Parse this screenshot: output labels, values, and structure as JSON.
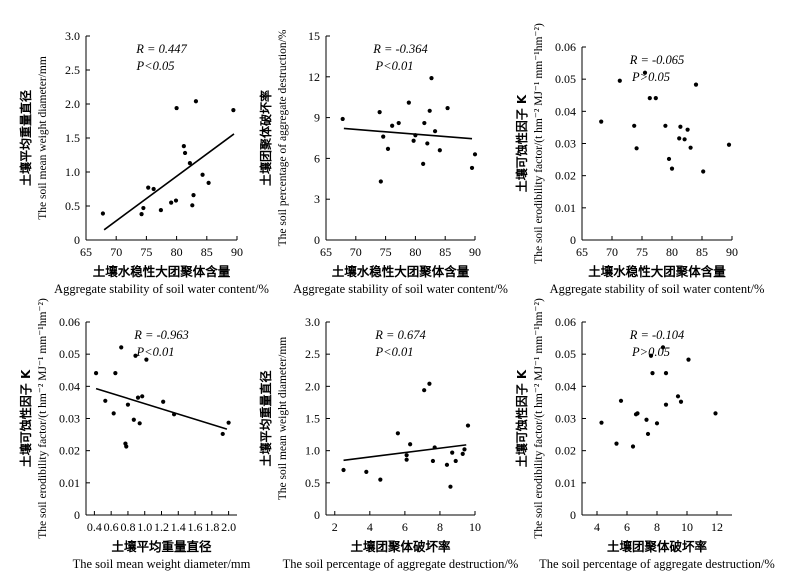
{
  "chart_data": [
    {
      "type": "scatter",
      "xlabel_cn": "土壤水稳性大团聚体含量",
      "xlabel_en": "Aggregate stability of soil water content/%",
      "ylabel_cn": "土壤平均重量直径",
      "ylabel_en": "The soil mean weight diameter/mm",
      "xlim": [
        65,
        90
      ],
      "ylim": [
        0,
        3.0
      ],
      "xticks": [
        "65",
        "70",
        "75",
        "80",
        "85",
        "90"
      ],
      "yticks": [
        "0",
        "0.5",
        "1.0",
        "1.5",
        "2.0",
        "2.5",
        "3.0"
      ],
      "r_text": "R = 0.447",
      "p_text": "P<0.05",
      "show_regression": true,
      "regression": {
        "x": [
          68,
          89.5
        ],
        "y": [
          0.15,
          1.56
        ]
      },
      "points": [
        {
          "x": 67.8,
          "y": 0.39
        },
        {
          "x": 74.2,
          "y": 0.38
        },
        {
          "x": 74.5,
          "y": 0.47
        },
        {
          "x": 75.3,
          "y": 0.77
        },
        {
          "x": 76.2,
          "y": 0.75
        },
        {
          "x": 77.4,
          "y": 0.44
        },
        {
          "x": 79.1,
          "y": 0.55
        },
        {
          "x": 79.9,
          "y": 0.58
        },
        {
          "x": 80.0,
          "y": 1.94
        },
        {
          "x": 81.2,
          "y": 1.38
        },
        {
          "x": 81.4,
          "y": 1.28
        },
        {
          "x": 82.2,
          "y": 1.13
        },
        {
          "x": 82.8,
          "y": 0.66
        },
        {
          "x": 82.6,
          "y": 0.51
        },
        {
          "x": 83.2,
          "y": 2.04
        },
        {
          "x": 84.3,
          "y": 0.96
        },
        {
          "x": 85.3,
          "y": 0.84
        },
        {
          "x": 89.4,
          "y": 1.91
        }
      ]
    },
    {
      "type": "scatter",
      "xlabel_cn": "土壤水稳性大团聚体含量",
      "xlabel_en": "Aggregate stability of soil water content/%",
      "ylabel_cn": "土壤团聚体破坏率",
      "ylabel_en": "The soil percentage of aggregate destruction/%",
      "xlim": [
        65,
        90
      ],
      "ylim": [
        0,
        15
      ],
      "xticks": [
        "65",
        "70",
        "75",
        "80",
        "85",
        "90"
      ],
      "yticks": [
        "0",
        "3",
        "6",
        "9",
        "12",
        "15"
      ],
      "r_text": "R = -0.364",
      "p_text": "P<0.01",
      "show_regression": true,
      "regression": {
        "x": [
          68,
          89.5
        ],
        "y": [
          8.2,
          7.45
        ]
      },
      "points": [
        {
          "x": 67.8,
          "y": 8.9
        },
        {
          "x": 74.0,
          "y": 9.4
        },
        {
          "x": 74.2,
          "y": 4.3
        },
        {
          "x": 74.6,
          "y": 7.6
        },
        {
          "x": 75.4,
          "y": 6.7
        },
        {
          "x": 76.1,
          "y": 8.4
        },
        {
          "x": 77.2,
          "y": 8.6
        },
        {
          "x": 78.9,
          "y": 10.1
        },
        {
          "x": 79.7,
          "y": 7.3
        },
        {
          "x": 80.0,
          "y": 7.7
        },
        {
          "x": 81.3,
          "y": 5.6
        },
        {
          "x": 81.5,
          "y": 8.6
        },
        {
          "x": 82.4,
          "y": 9.5
        },
        {
          "x": 82.7,
          "y": 11.9
        },
        {
          "x": 83.3,
          "y": 8.0
        },
        {
          "x": 84.1,
          "y": 6.6
        },
        {
          "x": 85.4,
          "y": 9.7
        },
        {
          "x": 89.5,
          "y": 5.3
        },
        {
          "x": 90.0,
          "y": 6.3
        },
        {
          "x": 82.0,
          "y": 7.1
        }
      ]
    },
    {
      "type": "scatter",
      "xlabel_cn": "土壤水稳性大团聚体含量",
      "xlabel_en": "Aggregate stability of soil water content/%",
      "ylabel_cn": "土壤可蚀性因子 K",
      "ylabel_en": "The soil erodibility factor/(t hm⁻² MJ⁻¹ mm⁻¹hm⁻²)",
      "xlim": [
        65,
        90
      ],
      "ylim": [
        0,
        0.06
      ],
      "xticks": [
        "65",
        "70",
        "75",
        "80",
        "85",
        "90"
      ],
      "yticks": [
        "0",
        "0.01",
        "0.02",
        "0.03",
        "0.04",
        "0.05",
        "0.06"
      ],
      "r_text": "R = -0.065",
      "p_text": "P>0.05",
      "show_regression": false,
      "regression": {
        "x": [],
        "y": []
      },
      "points": [
        {
          "x": 68.2,
          "y": 0.0368
        },
        {
          "x": 71.3,
          "y": 0.0495
        },
        {
          "x": 73.7,
          "y": 0.0355
        },
        {
          "x": 74.1,
          "y": 0.0285
        },
        {
          "x": 75.5,
          "y": 0.052
        },
        {
          "x": 76.3,
          "y": 0.0441
        },
        {
          "x": 77.3,
          "y": 0.0441
        },
        {
          "x": 78.9,
          "y": 0.0355
        },
        {
          "x": 79.5,
          "y": 0.0252
        },
        {
          "x": 80.0,
          "y": 0.0222
        },
        {
          "x": 81.4,
          "y": 0.0352
        },
        {
          "x": 81.2,
          "y": 0.0316
        },
        {
          "x": 82.1,
          "y": 0.0313
        },
        {
          "x": 82.6,
          "y": 0.0343
        },
        {
          "x": 83.1,
          "y": 0.0287
        },
        {
          "x": 84.0,
          "y": 0.0483
        },
        {
          "x": 85.2,
          "y": 0.0213
        },
        {
          "x": 89.5,
          "y": 0.0296
        }
      ]
    },
    {
      "type": "scatter",
      "xlabel_cn": "土壤平均重量直径",
      "xlabel_en": "The soil mean weight diameter/mm",
      "ylabel_cn": "土壤可蚀性因子 K",
      "ylabel_en": "The soil erodibility factor/(t hm⁻² MJ⁻¹ mm⁻¹hm⁻²)",
      "xlim": [
        0.3,
        2.1
      ],
      "ylim": [
        0,
        0.06
      ],
      "xticks": [
        "0.4",
        "0.6",
        "0.8",
        "1.0",
        "1.2",
        "1.4",
        "1.6",
        "1.8",
        "2.0"
      ],
      "yticks": [
        "0",
        "0.01",
        "0.02",
        "0.03",
        "0.04",
        "0.05",
        "0.06"
      ],
      "r_text": "R = -0.963",
      "p_text": "P<0.01",
      "show_regression": true,
      "regression": {
        "x": [
          0.42,
          1.98
        ],
        "y": [
          0.0393,
          0.0267
        ]
      },
      "points": [
        {
          "x": 0.42,
          "y": 0.0441
        },
        {
          "x": 0.53,
          "y": 0.0355
        },
        {
          "x": 0.63,
          "y": 0.0316
        },
        {
          "x": 0.65,
          "y": 0.0441
        },
        {
          "x": 0.72,
          "y": 0.0521
        },
        {
          "x": 0.77,
          "y": 0.0222
        },
        {
          "x": 0.78,
          "y": 0.0213
        },
        {
          "x": 0.8,
          "y": 0.0343
        },
        {
          "x": 0.87,
          "y": 0.0296
        },
        {
          "x": 0.89,
          "y": 0.0495
        },
        {
          "x": 0.92,
          "y": 0.0365
        },
        {
          "x": 0.94,
          "y": 0.0285
        },
        {
          "x": 1.02,
          "y": 0.0483
        },
        {
          "x": 0.97,
          "y": 0.0369
        },
        {
          "x": 1.22,
          "y": 0.0352
        },
        {
          "x": 1.35,
          "y": 0.0313
        },
        {
          "x": 1.93,
          "y": 0.0252
        },
        {
          "x": 2.0,
          "y": 0.0287
        }
      ]
    },
    {
      "type": "scatter",
      "xlabel_cn": "土壤团聚体破坏率",
      "xlabel_en": "The soil percentage of aggregate destruction/%",
      "ylabel_cn": "土壤平均重量直径",
      "ylabel_en": "The soil mean weight diameter/mm",
      "xlim": [
        1.5,
        10
      ],
      "ylim": [
        0,
        3.0
      ],
      "xticks": [
        "2",
        "4",
        "6",
        "8",
        "10"
      ],
      "yticks": [
        "0",
        "0.5",
        "1.0",
        "1.5",
        "2.0",
        "2.5",
        "3.0"
      ],
      "r_text": "R = 0.674",
      "p_text": "P<0.01",
      "show_regression": true,
      "regression": {
        "x": [
          2.5,
          9.5
        ],
        "y": [
          0.85,
          1.09
        ]
      },
      "points": [
        {
          "x": 2.5,
          "y": 0.7
        },
        {
          "x": 3.8,
          "y": 0.67
        },
        {
          "x": 4.6,
          "y": 0.55
        },
        {
          "x": 5.6,
          "y": 1.27
        },
        {
          "x": 6.1,
          "y": 0.93
        },
        {
          "x": 6.3,
          "y": 1.1
        },
        {
          "x": 6.1,
          "y": 0.86
        },
        {
          "x": 7.1,
          "y": 1.94
        },
        {
          "x": 7.4,
          "y": 2.04
        },
        {
          "x": 7.6,
          "y": 0.84
        },
        {
          "x": 7.7,
          "y": 1.05
        },
        {
          "x": 8.4,
          "y": 0.78
        },
        {
          "x": 8.6,
          "y": 0.44
        },
        {
          "x": 8.7,
          "y": 0.97
        },
        {
          "x": 8.9,
          "y": 0.84
        },
        {
          "x": 9.4,
          "y": 1.02
        },
        {
          "x": 9.6,
          "y": 1.39
        },
        {
          "x": 9.3,
          "y": 0.95
        }
      ]
    },
    {
      "type": "scatter",
      "xlabel_cn": "土壤团聚体破坏率",
      "xlabel_en": "The soil percentage of aggregate destruction/%",
      "ylabel_cn": "土壤可蚀性因子 K",
      "ylabel_en": "The soil erodibility factor/(t hm⁻² MJ⁻¹ mm⁻¹hm⁻²)",
      "xlim": [
        3,
        13
      ],
      "ylim": [
        0,
        0.06
      ],
      "xticks": [
        "4",
        "6",
        "8",
        "10",
        "12"
      ],
      "yticks": [
        "0",
        "0.01",
        "0.02",
        "0.03",
        "0.04",
        "0.05",
        "0.06"
      ],
      "r_text": "R = -0.104",
      "p_text": "P>0.05",
      "show_regression": false,
      "regression": {
        "x": [],
        "y": []
      },
      "points": [
        {
          "x": 4.3,
          "y": 0.0287
        },
        {
          "x": 5.3,
          "y": 0.0222
        },
        {
          "x": 5.6,
          "y": 0.0355
        },
        {
          "x": 6.4,
          "y": 0.0213
        },
        {
          "x": 6.6,
          "y": 0.0313
        },
        {
          "x": 6.7,
          "y": 0.0316
        },
        {
          "x": 7.3,
          "y": 0.0296
        },
        {
          "x": 7.4,
          "y": 0.0252
        },
        {
          "x": 7.6,
          "y": 0.0495
        },
        {
          "x": 7.7,
          "y": 0.0441
        },
        {
          "x": 8.0,
          "y": 0.0285
        },
        {
          "x": 8.4,
          "y": 0.0521
        },
        {
          "x": 8.6,
          "y": 0.0441
        },
        {
          "x": 8.6,
          "y": 0.0343
        },
        {
          "x": 9.4,
          "y": 0.0369
        },
        {
          "x": 9.6,
          "y": 0.0352
        },
        {
          "x": 10.1,
          "y": 0.0483
        },
        {
          "x": 11.9,
          "y": 0.0316
        }
      ]
    }
  ]
}
